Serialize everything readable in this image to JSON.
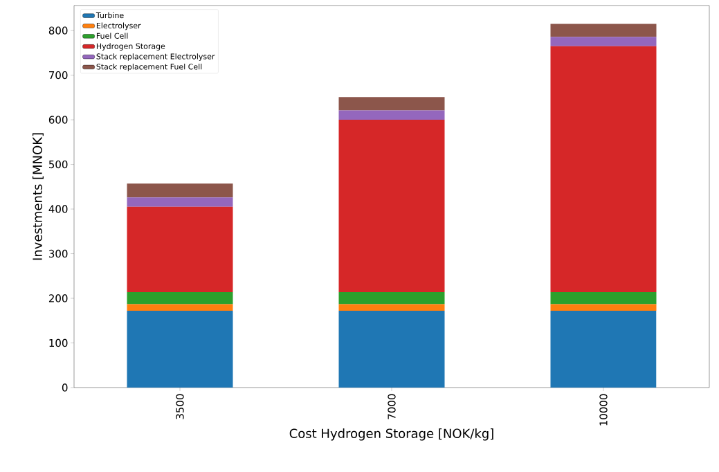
{
  "chart_data": {
    "type": "bar",
    "stacked": true,
    "xlabel": "Cost Hydrogen Storage [NOK/kg]",
    "ylabel": "Investments [MNOK]",
    "categories": [
      "3500",
      "7000",
      "10000"
    ],
    "series": [
      {
        "name": "Turbine",
        "color": "#1f77b4",
        "values": [
          172,
          172,
          172
        ]
      },
      {
        "name": "Electrolyser",
        "color": "#ff7f0e",
        "values": [
          15,
          15,
          15
        ]
      },
      {
        "name": "Fuel Cell",
        "color": "#2ca02c",
        "values": [
          27,
          27,
          27
        ]
      },
      {
        "name": "Hydrogen Storage",
        "color": "#d62728",
        "values": [
          191,
          386,
          551
        ]
      },
      {
        "name": "Stack replacement Electrolyser",
        "color": "#9467bd",
        "values": [
          21,
          21,
          21
        ]
      },
      {
        "name": "Stack replacement Fuel Cell",
        "color": "#8c564b",
        "values": [
          31,
          30,
          29
        ]
      }
    ],
    "ylim": [
      0,
      856
    ],
    "yticks": [
      0,
      100,
      200,
      300,
      400,
      500,
      600,
      700,
      800
    ],
    "grid": false,
    "legend": "top left"
  }
}
